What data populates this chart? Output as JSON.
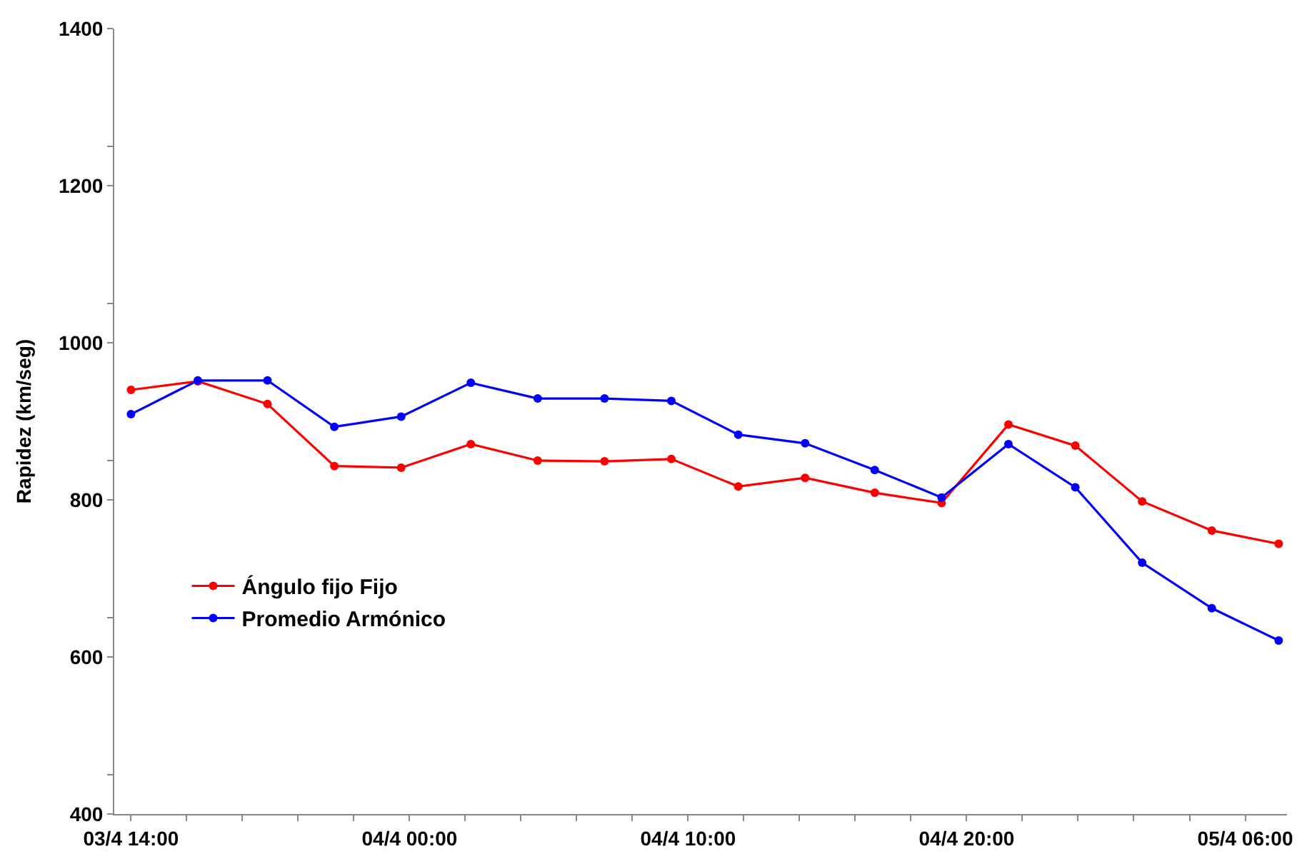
{
  "chart_data": {
    "type": "line",
    "ylabel": "Rapidez (km/seg)",
    "x": [
      "--04-03T14:00",
      "--04-03T16:24",
      "--04-03T18:54",
      "--04-03T21:18",
      "--04-03T23:42",
      "--04-04T02:12",
      "--04-04T04:36",
      "--04-04T07:00",
      "--04-04T09:24",
      "--04-04T11:48",
      "--04-04T14:12",
      "--04-04T16:42",
      "--04-04T19:06",
      "--04-04T21:30",
      "--04-04T23:54",
      "--04-05T02:18",
      "--04-05T04:48",
      "--04-05T07:12"
    ],
    "series": [
      {
        "name": "Ángulo fijo Fijo",
        "color": "#ff0000",
        "values": [
          940,
          951,
          922,
          843,
          841,
          871,
          850,
          849,
          852,
          817,
          828,
          809,
          796,
          896,
          869,
          798,
          761,
          744
        ]
      },
      {
        "name": "Promedio Armónico",
        "color": "#0000ff",
        "values": [
          909,
          952,
          952,
          893,
          906,
          949,
          929,
          929,
          926,
          883,
          872,
          838,
          803,
          871,
          816,
          720,
          662,
          621
        ]
      }
    ],
    "xlim": [
      "--04-03T13:24",
      "--04-05T07:30"
    ],
    "xticks": [
      {
        "value": "--04-03T14:00",
        "label": "03/4 14:00"
      },
      {
        "value": "--04-03T16:00",
        "label": null
      },
      {
        "value": "--04-03T18:00",
        "label": null
      },
      {
        "value": "--04-03T20:00",
        "label": null
      },
      {
        "value": "--04-03T22:00",
        "label": null
      },
      {
        "value": "--04-04T00:00",
        "label": "04/4 00:00"
      },
      {
        "value": "--04-04T02:00",
        "label": null
      },
      {
        "value": "--04-04T04:00",
        "label": null
      },
      {
        "value": "--04-04T06:00",
        "label": null
      },
      {
        "value": "--04-04T08:00",
        "label": null
      },
      {
        "value": "--04-04T10:00",
        "label": "04/4 10:00"
      },
      {
        "value": "--04-04T12:00",
        "label": null
      },
      {
        "value": "--04-04T14:00",
        "label": null
      },
      {
        "value": "--04-04T16:00",
        "label": null
      },
      {
        "value": "--04-04T18:00",
        "label": null
      },
      {
        "value": "--04-04T20:00",
        "label": "04/4 20:00"
      },
      {
        "value": "--04-04T22:00",
        "label": null
      },
      {
        "value": "--04-05T00:00",
        "label": null
      },
      {
        "value": "--04-05T02:00",
        "label": null
      },
      {
        "value": "--04-05T04:00",
        "label": null
      },
      {
        "value": "--04-05T06:00",
        "label": "05/4 06:00"
      }
    ],
    "ylim": [
      400,
      1400
    ],
    "yticks": [
      400,
      {
        "value": 450,
        "label": null
      },
      600,
      {
        "value": 650,
        "label": null
      },
      800,
      {
        "value": 850,
        "label": null
      },
      1000,
      {
        "value": 1050,
        "label": null
      },
      1200,
      {
        "value": 1250,
        "label": null
      },
      1400
    ],
    "legend": "bottom left",
    "marker": "circle",
    "line_style": "solid"
  }
}
